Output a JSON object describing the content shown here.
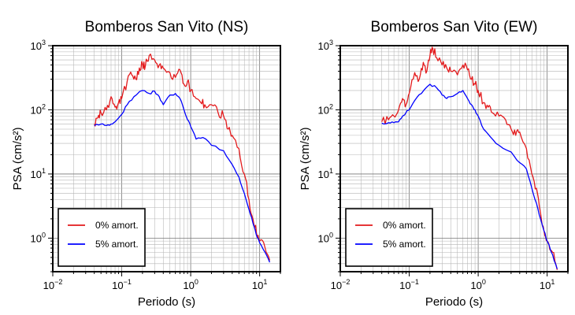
{
  "chart_data": [
    {
      "type": "line",
      "title": "Bomberos San Vito (NS)",
      "xlabel": "Periodo (s)",
      "ylabel": "PSA (cm/s²)",
      "xscale": "log",
      "yscale": "log",
      "xlim": [
        0.01,
        20
      ],
      "ylim": [
        0.3,
        1000
      ],
      "x_ticks": [
        {
          "base": "10",
          "exp": "−2"
        },
        {
          "base": "10",
          "exp": "−1"
        },
        {
          "base": "10",
          "exp": "0"
        },
        {
          "base": "10",
          "exp": "1"
        }
      ],
      "y_ticks": [
        {
          "base": "10",
          "exp": "0"
        },
        {
          "base": "10",
          "exp": "1"
        },
        {
          "base": "10",
          "exp": "2"
        },
        {
          "base": "10",
          "exp": "3"
        }
      ],
      "grid": true,
      "legend_position": "bottom-left",
      "series": [
        {
          "name": "0% amort.",
          "color": "#e31a1c",
          "style": "jagged",
          "points": [
            [
              0.04,
              60
            ],
            [
              0.045,
              75
            ],
            [
              0.05,
              90
            ],
            [
              0.06,
              100
            ],
            [
              0.07,
              160
            ],
            [
              0.08,
              110
            ],
            [
              0.09,
              130
            ],
            [
              0.1,
              150
            ],
            [
              0.12,
              280
            ],
            [
              0.14,
              350
            ],
            [
              0.16,
              300
            ],
            [
              0.18,
              450
            ],
            [
              0.2,
              520
            ],
            [
              0.22,
              480
            ],
            [
              0.25,
              700
            ],
            [
              0.3,
              600
            ],
            [
              0.35,
              500
            ],
            [
              0.4,
              450
            ],
            [
              0.5,
              380
            ],
            [
              0.6,
              320
            ],
            [
              0.7,
              420
            ],
            [
              0.8,
              250
            ],
            [
              0.9,
              280
            ],
            [
              1.0,
              200
            ],
            [
              1.2,
              150
            ],
            [
              1.4,
              130
            ],
            [
              1.6,
              120
            ],
            [
              2.0,
              120
            ],
            [
              2.5,
              90
            ],
            [
              3.0,
              80
            ],
            [
              3.5,
              50
            ],
            [
              4.0,
              40
            ],
            [
              5.0,
              25
            ],
            [
              6.0,
              10
            ],
            [
              7.0,
              4
            ],
            [
              8.0,
              2
            ],
            [
              9.0,
              1.2
            ],
            [
              10,
              0.9
            ],
            [
              12,
              0.7
            ],
            [
              14,
              0.45
            ]
          ]
        },
        {
          "name": "5% amort.",
          "color": "#0000ff",
          "style": "smooth",
          "points": [
            [
              0.04,
              57
            ],
            [
              0.05,
              60
            ],
            [
              0.06,
              57
            ],
            [
              0.07,
              60
            ],
            [
              0.08,
              65
            ],
            [
              0.1,
              85
            ],
            [
              0.12,
              120
            ],
            [
              0.15,
              160
            ],
            [
              0.2,
              200
            ],
            [
              0.25,
              180
            ],
            [
              0.3,
              195
            ],
            [
              0.35,
              160
            ],
            [
              0.4,
              120
            ],
            [
              0.5,
              170
            ],
            [
              0.6,
              180
            ],
            [
              0.7,
              150
            ],
            [
              0.8,
              100
            ],
            [
              0.9,
              70
            ],
            [
              1.0,
              55
            ],
            [
              1.2,
              35
            ],
            [
              1.5,
              37
            ],
            [
              2.0,
              28
            ],
            [
              3.0,
              23
            ],
            [
              4.0,
              14
            ],
            [
              5.0,
              9
            ],
            [
              6.0,
              5
            ],
            [
              7.0,
              2.8
            ],
            [
              8.0,
              1.7
            ],
            [
              9.0,
              1.1
            ],
            [
              10,
              0.85
            ],
            [
              12,
              0.6
            ],
            [
              14,
              0.42
            ]
          ]
        }
      ]
    },
    {
      "type": "line",
      "title": "Bomberos San Vito (EW)",
      "xlabel": "Periodo (s)",
      "ylabel": "PSA (cm/s²)",
      "xscale": "log",
      "yscale": "log",
      "xlim": [
        0.01,
        20
      ],
      "ylim": [
        0.3,
        1000
      ],
      "x_ticks": [
        {
          "base": "10",
          "exp": "−2"
        },
        {
          "base": "10",
          "exp": "−1"
        },
        {
          "base": "10",
          "exp": "0"
        },
        {
          "base": "10",
          "exp": "1"
        }
      ],
      "y_ticks": [
        {
          "base": "10",
          "exp": "0"
        },
        {
          "base": "10",
          "exp": "1"
        },
        {
          "base": "10",
          "exp": "2"
        },
        {
          "base": "10",
          "exp": "3"
        }
      ],
      "grid": true,
      "legend_position": "bottom-left",
      "series": [
        {
          "name": "0% amort.",
          "color": "#e31a1c",
          "style": "jagged",
          "points": [
            [
              0.04,
              65
            ],
            [
              0.05,
              70
            ],
            [
              0.06,
              80
            ],
            [
              0.07,
              100
            ],
            [
              0.08,
              150
            ],
            [
              0.09,
              120
            ],
            [
              0.1,
              180
            ],
            [
              0.12,
              380
            ],
            [
              0.14,
              300
            ],
            [
              0.16,
              550
            ],
            [
              0.18,
              400
            ],
            [
              0.2,
              700
            ],
            [
              0.22,
              900
            ],
            [
              0.25,
              650
            ],
            [
              0.3,
              500
            ],
            [
              0.35,
              450
            ],
            [
              0.4,
              400
            ],
            [
              0.5,
              350
            ],
            [
              0.6,
              500
            ],
            [
              0.7,
              420
            ],
            [
              0.8,
              300
            ],
            [
              0.9,
              250
            ],
            [
              1.0,
              200
            ],
            [
              1.2,
              130
            ],
            [
              1.4,
              110
            ],
            [
              1.6,
              90
            ],
            [
              2.0,
              80
            ],
            [
              2.5,
              70
            ],
            [
              3.0,
              50
            ],
            [
              3.5,
              40
            ],
            [
              4.0,
              45
            ],
            [
              5.0,
              25
            ],
            [
              6.0,
              10
            ],
            [
              7.0,
              6
            ],
            [
              8.0,
              2.5
            ],
            [
              9.0,
              1.3
            ],
            [
              10,
              0.9
            ],
            [
              12,
              0.6
            ],
            [
              14,
              0.32
            ]
          ]
        },
        {
          "name": "5% amort.",
          "color": "#0000ff",
          "style": "smooth",
          "points": [
            [
              0.04,
              62
            ],
            [
              0.05,
              63
            ],
            [
              0.06,
              63
            ],
            [
              0.07,
              65
            ],
            [
              0.08,
              80
            ],
            [
              0.1,
              100
            ],
            [
              0.12,
              140
            ],
            [
              0.15,
              180
            ],
            [
              0.2,
              250
            ],
            [
              0.25,
              220
            ],
            [
              0.3,
              170
            ],
            [
              0.35,
              150
            ],
            [
              0.4,
              160
            ],
            [
              0.5,
              180
            ],
            [
              0.6,
              200
            ],
            [
              0.7,
              150
            ],
            [
              0.8,
              120
            ],
            [
              0.9,
              100
            ],
            [
              1.0,
              80
            ],
            [
              1.2,
              50
            ],
            [
              1.5,
              38
            ],
            [
              2.0,
              28
            ],
            [
              3.0,
              22
            ],
            [
              4.0,
              15
            ],
            [
              5.0,
              12
            ],
            [
              6.0,
              6
            ],
            [
              7.0,
              3.5
            ],
            [
              8.0,
              2
            ],
            [
              9.0,
              1.3
            ],
            [
              10,
              0.9
            ],
            [
              12,
              0.55
            ],
            [
              14,
              0.33
            ]
          ]
        }
      ]
    }
  ]
}
